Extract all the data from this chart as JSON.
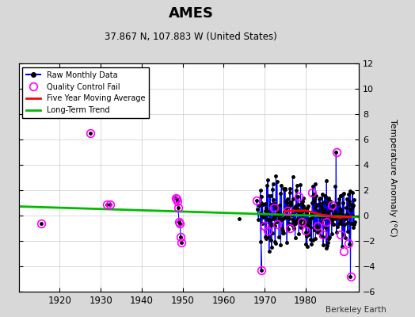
{
  "title": "AMES",
  "subtitle": "37.867 N, 107.883 W (United States)",
  "ylabel": "Temperature Anomaly (°C)",
  "credit": "Berkeley Earth",
  "background_color": "#d8d8d8",
  "plot_bg_color": "#ffffff",
  "xlim": [
    1910,
    1993
  ],
  "ylim": [
    -6,
    12
  ],
  "yticks_right": [
    -6,
    -4,
    -2,
    0,
    2,
    4,
    6,
    8,
    10,
    12
  ],
  "xticks": [
    1920,
    1930,
    1940,
    1950,
    1960,
    1970,
    1980
  ],
  "line_color": "#0000ff",
  "dot_color": "#000000",
  "qc_color": "#ff00ff",
  "avg_color": "#ff0000",
  "trend_color": "#00bb00",
  "grid_color": "#cccccc",
  "early_points": [
    [
      1915.5,
      -0.6
    ],
    [
      1927.5,
      6.5
    ]
  ],
  "mid_points": [
    [
      1931.5,
      0.9
    ],
    [
      1932.3,
      0.85
    ]
  ],
  "mid48_points": [
    [
      1948.3,
      1.4
    ],
    [
      1948.5,
      1.3
    ],
    [
      1948.7,
      1.1
    ],
    [
      1948.9,
      0.6
    ],
    [
      1949.1,
      -0.5
    ],
    [
      1949.35,
      -0.6
    ],
    [
      1949.5,
      -1.7
    ],
    [
      1949.7,
      -2.1
    ]
  ],
  "sparse63": [
    [
      1963.7,
      -0.25
    ]
  ],
  "trend_x": [
    1910,
    1993
  ],
  "trend_y": [
    0.72,
    -0.12
  ],
  "avg_x": [
    1975,
    1980,
    1984,
    1988,
    1991
  ],
  "avg_y": [
    0.35,
    0.4,
    0.05,
    -0.15,
    -0.1
  ],
  "qc_early": [
    [
      1915.5,
      -0.6
    ],
    [
      1927.5,
      6.5
    ],
    [
      1931.5,
      0.9
    ],
    [
      1932.3,
      0.85
    ],
    [
      1948.3,
      1.4
    ],
    [
      1948.5,
      1.3
    ],
    [
      1948.7,
      1.1
    ],
    [
      1948.9,
      0.6
    ],
    [
      1949.1,
      -0.5
    ],
    [
      1949.35,
      -0.6
    ],
    [
      1949.5,
      -1.7
    ],
    [
      1949.7,
      -2.1
    ]
  ]
}
